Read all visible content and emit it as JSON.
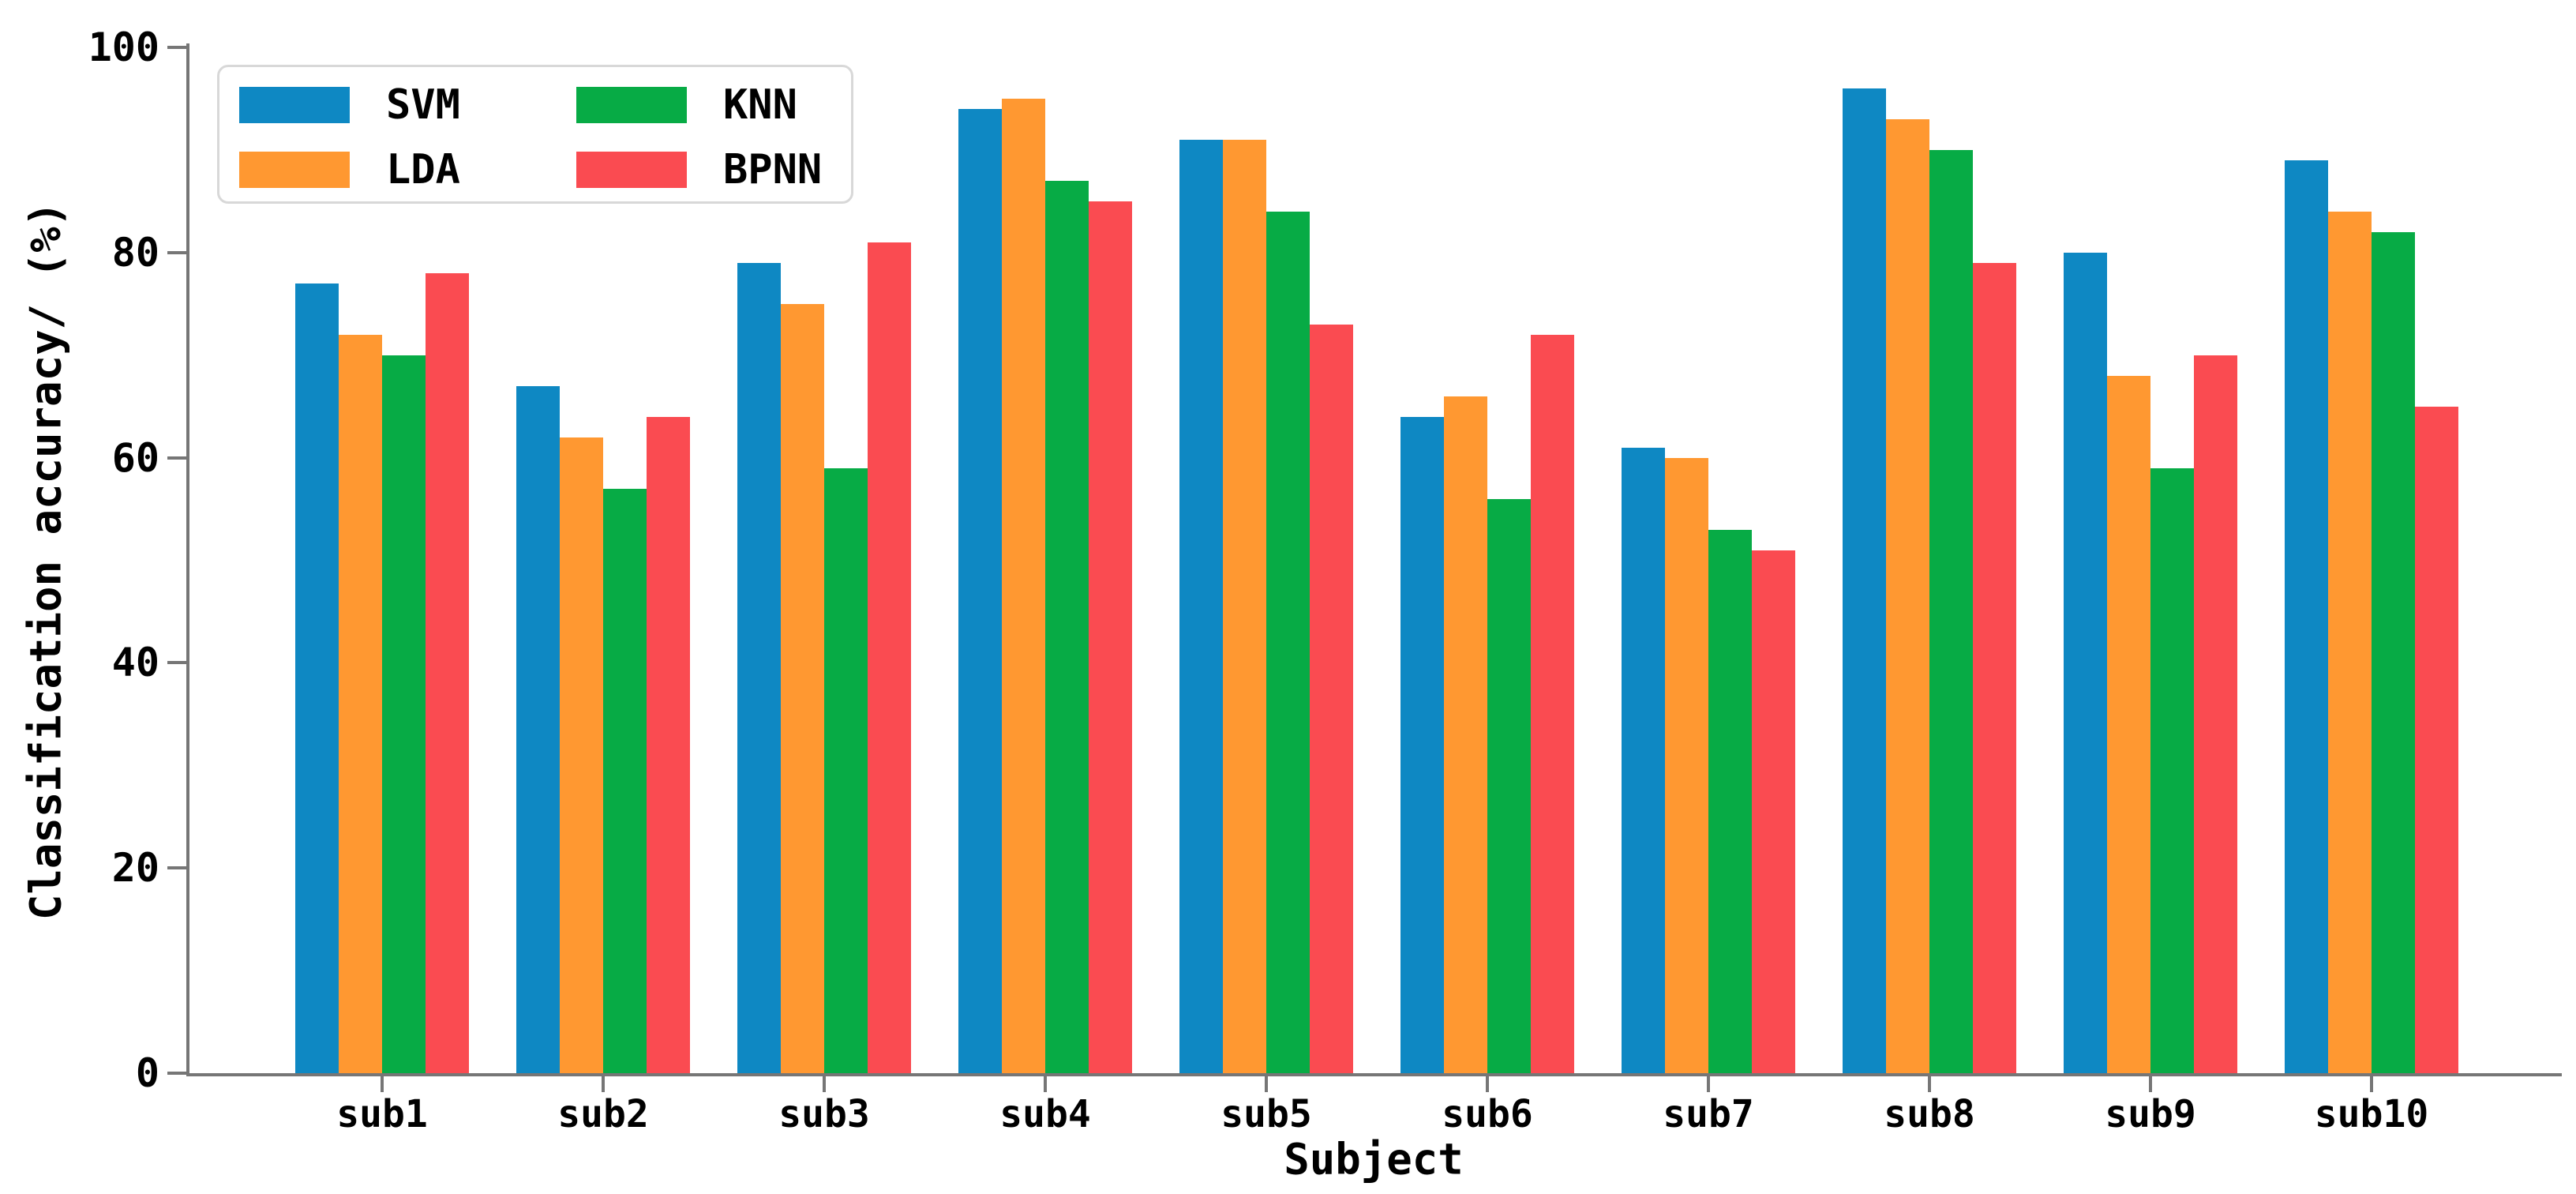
{
  "chart_data": {
    "type": "bar",
    "title": "",
    "xlabel": "Subject",
    "ylabel": "Classification accuracy/ (%)",
    "categories": [
      "sub1",
      "sub2",
      "sub3",
      "sub4",
      "sub5",
      "sub6",
      "sub7",
      "sub8",
      "sub9",
      "sub10"
    ],
    "series": [
      {
        "name": "SVM",
        "color": "#0e88c3",
        "values": [
          77,
          67,
          79,
          94,
          91,
          64,
          61,
          96,
          80,
          89
        ]
      },
      {
        "name": "LDA",
        "color": "#ff9831",
        "values": [
          72,
          62,
          75,
          95,
          91,
          66,
          60,
          93,
          68,
          84
        ]
      },
      {
        "name": "KNN",
        "color": "#07ab45",
        "values": [
          70,
          57,
          59,
          87,
          84,
          56,
          53,
          90,
          59,
          82
        ]
      },
      {
        "name": "BPNN",
        "color": "#fa4b51",
        "values": [
          78,
          64,
          81,
          85,
          73,
          72,
          51,
          79,
          70,
          65
        ]
      }
    ],
    "ylim": [
      0,
      100
    ],
    "yticks": [
      0,
      20,
      40,
      60,
      80,
      100
    ],
    "grid": false,
    "legend_position": "upper-left-inside",
    "axis_color": "#767676",
    "text_color": "#000000"
  }
}
